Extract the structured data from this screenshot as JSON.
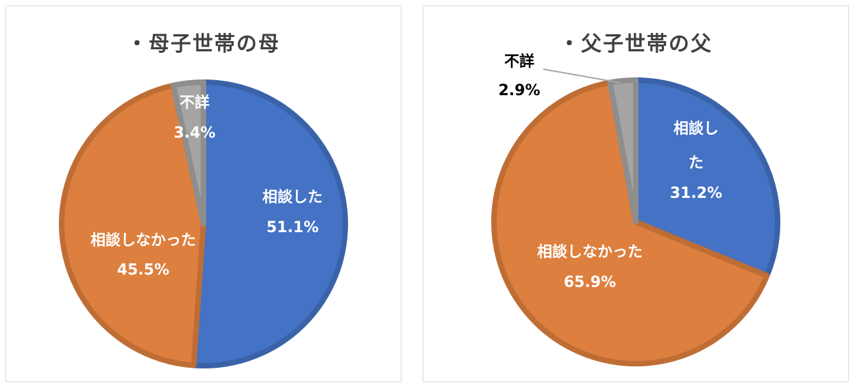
{
  "chart_data": [
    {
      "type": "pie",
      "title": "・母子世帯の母",
      "categories": [
        "相談した",
        "相談しなかった",
        "不詳"
      ],
      "values": [
        51.1,
        45.5,
        3.4
      ],
      "value_labels": [
        "51.1%",
        "45.5%",
        "3.4%"
      ],
      "colors": [
        "#4472c4",
        "#dd7f3e",
        "#a5a5a5"
      ],
      "legend": "none"
    },
    {
      "type": "pie",
      "title": "・父子世帯の父",
      "categories": [
        "相談した",
        "相談しなかった",
        "不詳"
      ],
      "values": [
        31.2,
        65.9,
        2.9
      ],
      "value_labels": [
        "31.2%",
        "65.9%",
        "2.9%"
      ],
      "colors": [
        "#4472c4",
        "#dd7f3e",
        "#a5a5a5"
      ],
      "legend": "none"
    }
  ]
}
